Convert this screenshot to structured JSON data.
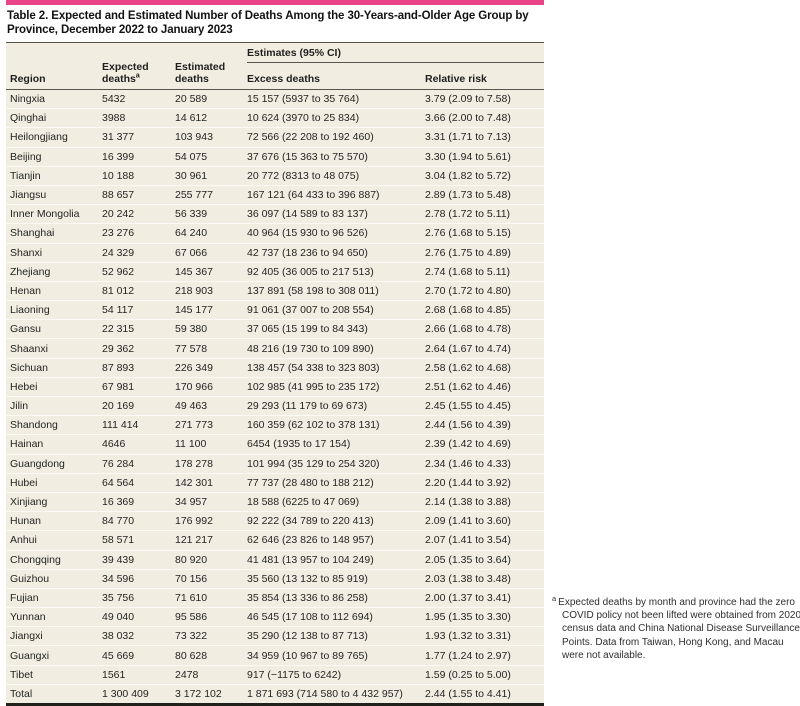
{
  "title": "Table 2. Expected and Estimated Number of Deaths Among the 30-Years-and-Older Age Group by Province, December 2022 to January 2023",
  "colors": {
    "accent_bar": "#e94487",
    "table_bg": "#f1ede0"
  },
  "table": {
    "columns": {
      "region": "Region",
      "expected": "Expected deaths",
      "expected_sup": "a",
      "estimated": "Estimated deaths",
      "spanner": "Estimates (95% CI)",
      "excess": "Excess deaths",
      "relative": "Relative risk"
    },
    "rows": [
      {
        "region": "Ningxia",
        "expected": "5432",
        "estimated": "20 589",
        "excess": "15 157 (5937 to 35 764)",
        "relative": "3.79 (2.09 to 7.58)"
      },
      {
        "region": "Qinghai",
        "expected": "3988",
        "estimated": "14 612",
        "excess": "10 624 (3970 to 25 834)",
        "relative": "3.66 (2.00 to 7.48)"
      },
      {
        "region": "Heilongjiang",
        "expected": "31 377",
        "estimated": "103 943",
        "excess": "72 566 (22 208 to 192 460)",
        "relative": "3.31 (1.71 to 7.13)"
      },
      {
        "region": "Beijing",
        "expected": "16 399",
        "estimated": "54 075",
        "excess": "37 676 (15 363 to 75 570)",
        "relative": "3.30 (1.94 to 5.61)"
      },
      {
        "region": "Tianjin",
        "expected": "10 188",
        "estimated": "30 961",
        "excess": "20 772 (8313 to 48 075)",
        "relative": "3.04 (1.82 to 5.72)"
      },
      {
        "region": "Jiangsu",
        "expected": "88 657",
        "estimated": "255 777",
        "excess": "167 121 (64 433 to 396 887)",
        "relative": "2.89 (1.73 to 5.48)"
      },
      {
        "region": "Inner Mongolia",
        "expected": "20 242",
        "estimated": "56 339",
        "excess": "36 097 (14 589 to 83 137)",
        "relative": "2.78 (1.72 to 5.11)"
      },
      {
        "region": "Shanghai",
        "expected": "23 276",
        "estimated": "64 240",
        "excess": "40 964 (15 930 to 96 526)",
        "relative": "2.76 (1.68 to 5.15)"
      },
      {
        "region": "Shanxi",
        "expected": "24 329",
        "estimated": "67 066",
        "excess": "42 737 (18 236 to 94 650)",
        "relative": "2.76 (1.75 to 4.89)"
      },
      {
        "region": "Zhejiang",
        "expected": "52 962",
        "estimated": "145 367",
        "excess": "92 405 (36 005 to 217 513)",
        "relative": "2.74 (1.68 to 5.11)"
      },
      {
        "region": "Henan",
        "expected": "81 012",
        "estimated": "218 903",
        "excess": "137 891 (58 198 to 308 011)",
        "relative": "2.70 (1.72 to 4.80)"
      },
      {
        "region": "Liaoning",
        "expected": "54 117",
        "estimated": "145 177",
        "excess": "91 061 (37 007 to 208 554)",
        "relative": "2.68 (1.68 to 4.85)"
      },
      {
        "region": "Gansu",
        "expected": "22 315",
        "estimated": "59 380",
        "excess": "37 065 (15 199 to 84 343)",
        "relative": "2.66 (1.68 to 4.78)"
      },
      {
        "region": "Shaanxi",
        "expected": "29 362",
        "estimated": "77 578",
        "excess": "48 216 (19 730 to 109 890)",
        "relative": "2.64 (1.67 to 4.74)"
      },
      {
        "region": "Sichuan",
        "expected": "87 893",
        "estimated": "226 349",
        "excess": "138 457 (54 338 to 323 803)",
        "relative": "2.58 (1.62 to 4.68)"
      },
      {
        "region": "Hebei",
        "expected": "67 981",
        "estimated": "170 966",
        "excess": "102 985 (41 995 to 235 172)",
        "relative": "2.51 (1.62 to 4.46)"
      },
      {
        "region": "Jilin",
        "expected": "20 169",
        "estimated": "49 463",
        "excess": "29 293 (11 179 to 69 673)",
        "relative": "2.45 (1.55 to 4.45)"
      },
      {
        "region": "Shandong",
        "expected": "111 414",
        "estimated": "271 773",
        "excess": "160 359 (62 102 to 378 131)",
        "relative": "2.44 (1.56 to 4.39)"
      },
      {
        "region": "Hainan",
        "expected": "4646",
        "estimated": "11 100",
        "excess": "6454 (1935 to 17 154)",
        "relative": "2.39 (1.42 to 4.69)"
      },
      {
        "region": "Guangdong",
        "expected": "76 284",
        "estimated": "178 278",
        "excess": "101 994 (35 129 to 254 320)",
        "relative": "2.34 (1.46 to 4.33)"
      },
      {
        "region": "Hubei",
        "expected": "64 564",
        "estimated": "142 301",
        "excess": "77 737 (28 480 to 188 212)",
        "relative": "2.20 (1.44 to 3.92)"
      },
      {
        "region": "Xinjiang",
        "expected": "16 369",
        "estimated": "34 957",
        "excess": "18 588 (6225 to 47 069)",
        "relative": "2.14 (1.38 to 3.88)"
      },
      {
        "region": "Hunan",
        "expected": "84 770",
        "estimated": "176 992",
        "excess": "92 222 (34 789 to 220 413)",
        "relative": "2.09 (1.41 to 3.60)"
      },
      {
        "region": "Anhui",
        "expected": "58 571",
        "estimated": "121 217",
        "excess": "62 646 (23 826 to 148 957)",
        "relative": "2.07 (1.41 to 3.54)"
      },
      {
        "region": "Chongqing",
        "expected": "39 439",
        "estimated": "80 920",
        "excess": "41 481 (13 957 to 104 249)",
        "relative": "2.05 (1.35 to 3.64)"
      },
      {
        "region": "Guizhou",
        "expected": "34 596",
        "estimated": "70 156",
        "excess": "35 560 (13 132 to 85 919)",
        "relative": "2.03 (1.38 to 3.48)"
      },
      {
        "region": "Fujian",
        "expected": "35 756",
        "estimated": "71 610",
        "excess": "35 854 (13 336 to 86 258)",
        "relative": "2.00 (1.37 to 3.41)"
      },
      {
        "region": "Yunnan",
        "expected": "49 040",
        "estimated": "95 586",
        "excess": "46 545 (17 108 to 112 694)",
        "relative": "1.95 (1.35 to 3.30)"
      },
      {
        "region": "Jiangxi",
        "expected": "38 032",
        "estimated": "73 322",
        "excess": "35 290 (12 138 to 87 713)",
        "relative": "1.93 (1.32 to 3.31)"
      },
      {
        "region": "Guangxi",
        "expected": "45 669",
        "estimated": "80 628",
        "excess": "34 959 (10 967 to 89 765)",
        "relative": "1.77 (1.24 to 2.97)"
      },
      {
        "region": "Tibet",
        "expected": "1561",
        "estimated": "2478",
        "excess": "917 (−1175 to 6242)",
        "relative": "1.59 (0.25 to 5.00)"
      },
      {
        "region": "Total",
        "expected": "1 300 409",
        "estimated": "3 172 102",
        "excess": "1 871 693 (714 580 to 4 432 957)",
        "relative": "2.44 (1.55 to 4.41)",
        "total": true
      }
    ]
  },
  "footnote": {
    "marker": "a",
    "text": "Expected deaths by month and province had the zero COVID policy not been lifted were obtained from 2020 census data and China National Disease Surveillance Points. Data from Taiwan, Hong Kong, and Macau were not available."
  }
}
